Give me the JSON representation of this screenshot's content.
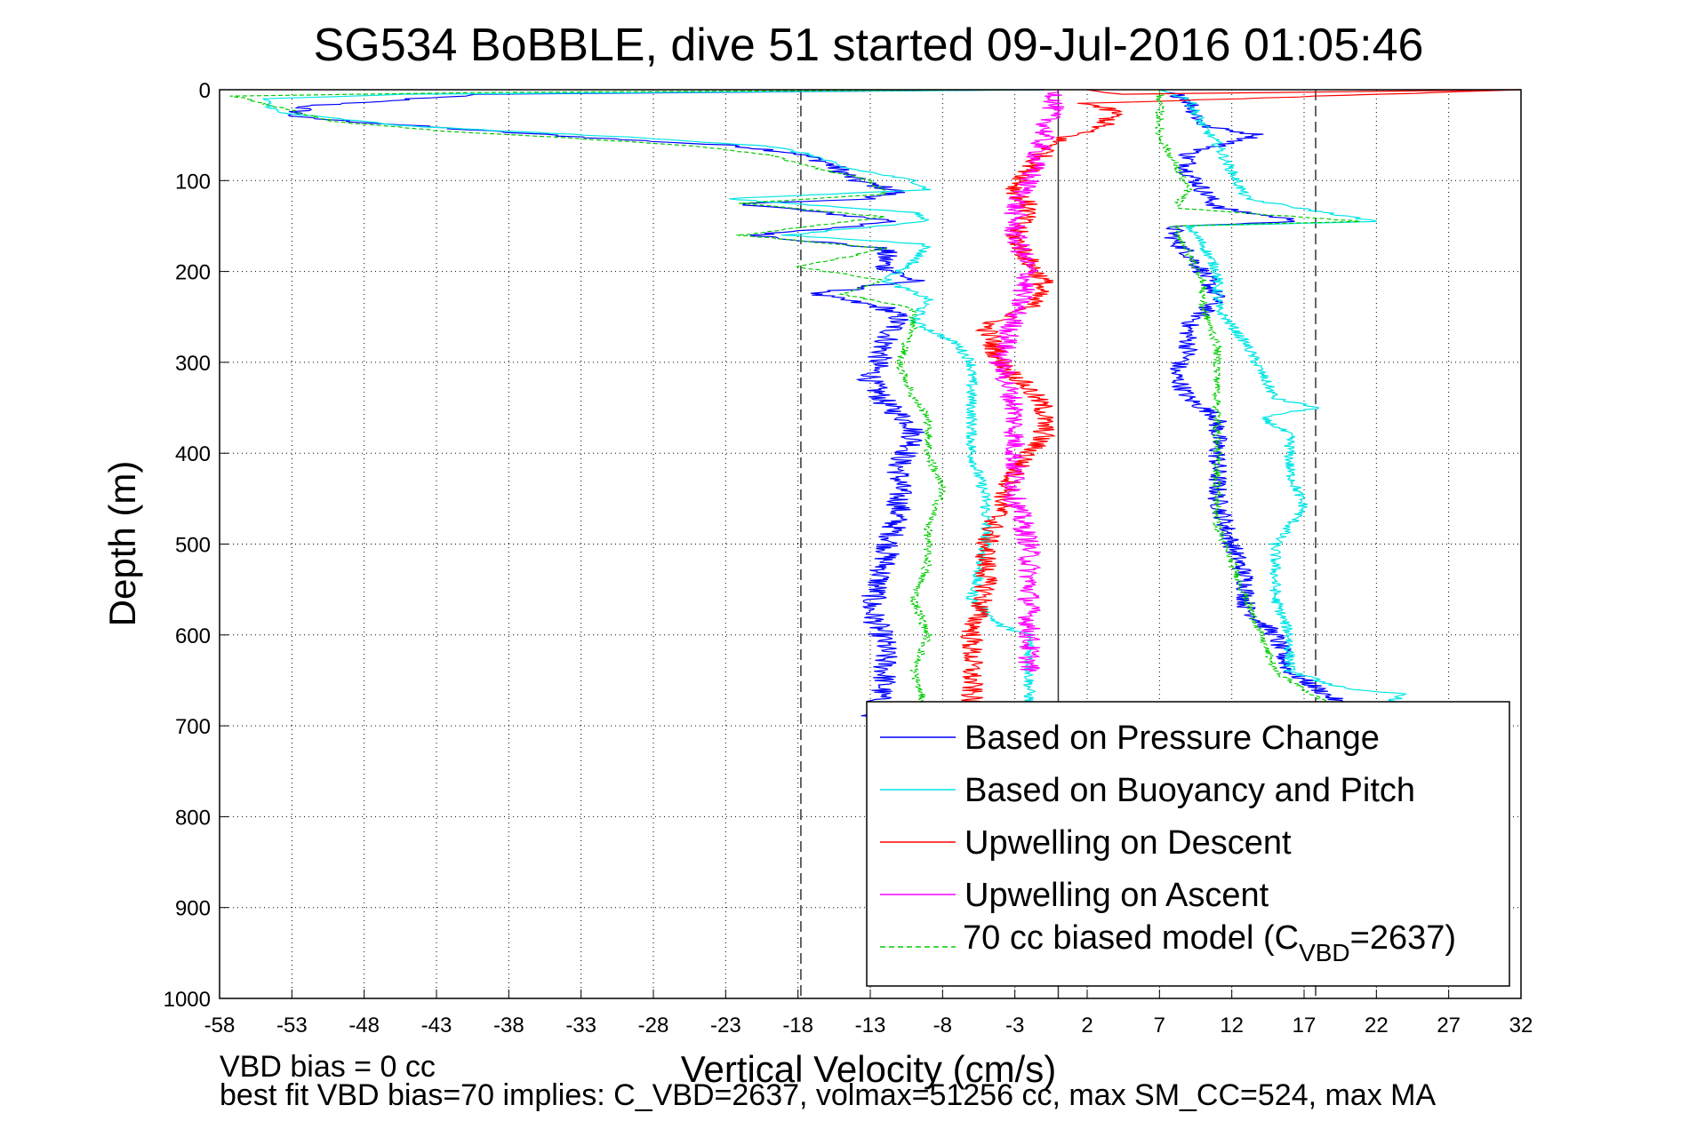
{
  "chart_data": {
    "type": "line",
    "title": "SG534 BoBBLE, dive 51 started 09-Jul-2016 01:05:46",
    "xlabel": "Vertical Velocity (cm/s)",
    "ylabel": "Depth (m)",
    "xlim": [
      -58,
      32
    ],
    "ylim": [
      0,
      1000
    ],
    "y_reversed": true,
    "grid": true,
    "x_ticks": [
      "-58",
      "-53",
      "-48",
      "-43",
      "-38",
      "-33",
      "-28",
      "-23",
      "-18",
      "-13",
      "-8",
      "-3",
      "2",
      "7",
      "12",
      "17",
      "22",
      "27",
      "32"
    ],
    "y_ticks": [
      "0",
      "100",
      "200",
      "300",
      "400",
      "500",
      "600",
      "700",
      "800",
      "900",
      "1000"
    ],
    "reference_lines": [
      {
        "x": -17.8,
        "style": "dashed"
      },
      {
        "x": 0,
        "style": "solid"
      },
      {
        "x": 17.8,
        "style": "dashed"
      }
    ],
    "legend_position": "bottom-right",
    "legend": [
      {
        "label": "Based on Pressure Change",
        "color": "#0000ff",
        "style": "solid"
      },
      {
        "label": "Based on Buoyancy and Pitch",
        "color": "#00e5e5",
        "style": "solid"
      },
      {
        "label": "Upwelling on Descent",
        "color": "#ff0000",
        "style": "solid"
      },
      {
        "label": "Upwelling on Ascent",
        "color": "#ff00ff",
        "style": "solid"
      },
      {
        "label_main": "70 cc biased model (C",
        "label_sub": "VBD",
        "label_tail": "=2637)",
        "color": "#00cc00",
        "style": "dashed"
      }
    ],
    "series": [
      {
        "color": "#0000ff",
        "segment": "descent",
        "noise": 0.9,
        "points": [
          [
            -1,
            0
          ],
          [
            -40,
            5
          ],
          [
            -52,
            18
          ],
          [
            -53,
            30
          ],
          [
            -40,
            45
          ],
          [
            -30,
            55
          ],
          [
            -22,
            62
          ],
          [
            -18,
            70
          ],
          [
            -16,
            80
          ],
          [
            -14,
            100
          ],
          [
            -11,
            112
          ],
          [
            -13,
            120
          ],
          [
            -22,
            125
          ],
          [
            -11,
            145
          ],
          [
            -21,
            160
          ],
          [
            -12,
            175
          ],
          [
            -12,
            195
          ],
          [
            -10,
            210
          ],
          [
            -17,
            225
          ],
          [
            -12,
            240
          ],
          [
            -11,
            250
          ],
          [
            -12,
            280
          ],
          [
            -13,
            320
          ],
          [
            -12,
            345
          ],
          [
            -10,
            370
          ],
          [
            -10,
            390
          ],
          [
            -11,
            410
          ],
          [
            -11,
            460
          ],
          [
            -12,
            520
          ],
          [
            -13,
            570
          ],
          [
            -12,
            610
          ],
          [
            -12,
            650
          ],
          [
            -13,
            700
          ]
        ]
      },
      {
        "color": "#0000ff",
        "segment": "ascent",
        "noise": 0.7,
        "points": [
          [
            7,
            0
          ],
          [
            9,
            10
          ],
          [
            10,
            40
          ],
          [
            14,
            50
          ],
          [
            9,
            70
          ],
          [
            9,
            90
          ],
          [
            10,
            110
          ],
          [
            11,
            130
          ],
          [
            17,
            145
          ],
          [
            8,
            150
          ],
          [
            8,
            165
          ],
          [
            9,
            180
          ],
          [
            10,
            200
          ],
          [
            11,
            230
          ],
          [
            9,
            260
          ],
          [
            9,
            290
          ],
          [
            8,
            310
          ],
          [
            9,
            340
          ],
          [
            11,
            360
          ],
          [
            11,
            400
          ],
          [
            11,
            450
          ],
          [
            12,
            500
          ],
          [
            13,
            540
          ],
          [
            13,
            570
          ],
          [
            15,
            600
          ],
          [
            16,
            640
          ],
          [
            19,
            670
          ],
          [
            20,
            680
          ]
        ]
      },
      {
        "color": "#00e5e5",
        "segment": "descent",
        "noise": 0.4,
        "points": [
          [
            -1,
            0
          ],
          [
            -45,
            5
          ],
          [
            -55,
            10
          ],
          [
            -54,
            25
          ],
          [
            -45,
            40
          ],
          [
            -30,
            52
          ],
          [
            -20,
            62
          ],
          [
            -17,
            72
          ],
          [
            -15,
            85
          ],
          [
            -10,
            100
          ],
          [
            -9,
            110
          ],
          [
            -23,
            120
          ],
          [
            -10,
            135
          ],
          [
            -9,
            145
          ],
          [
            -19,
            160
          ],
          [
            -9,
            170
          ],
          [
            -10,
            190
          ],
          [
            -12,
            210
          ],
          [
            -9,
            230
          ],
          [
            -10,
            255
          ],
          [
            -7,
            280
          ],
          [
            -6,
            300
          ],
          [
            -6,
            340
          ],
          [
            -6,
            400
          ],
          [
            -5,
            450
          ],
          [
            -5,
            500
          ],
          [
            -6,
            560
          ],
          [
            -4,
            590
          ],
          [
            -2,
            600
          ],
          [
            -2,
            640
          ],
          [
            -2,
            700
          ]
        ]
      },
      {
        "color": "#00e5e5",
        "segment": "ascent",
        "noise": 0.4,
        "points": [
          [
            7,
            0
          ],
          [
            9,
            10
          ],
          [
            10,
            40
          ],
          [
            11,
            60
          ],
          [
            12,
            90
          ],
          [
            13,
            120
          ],
          [
            22,
            145
          ],
          [
            9,
            150
          ],
          [
            10,
            170
          ],
          [
            11,
            200
          ],
          [
            11,
            240
          ],
          [
            13,
            280
          ],
          [
            14,
            310
          ],
          [
            15,
            340
          ],
          [
            18,
            350
          ],
          [
            14,
            360
          ],
          [
            16,
            380
          ],
          [
            16,
            420
          ],
          [
            17,
            460
          ],
          [
            15,
            500
          ],
          [
            15,
            560
          ],
          [
            16,
            600
          ],
          [
            16,
            640
          ],
          [
            20,
            660
          ],
          [
            24,
            665
          ],
          [
            21,
            690
          ]
        ]
      },
      {
        "color": "#ff0000",
        "segment": "descent",
        "noise": 0.8,
        "points": [
          [
            2,
            0
          ],
          [
            4,
            5
          ],
          [
            32,
            0
          ],
          [
            2,
            15
          ],
          [
            4,
            25
          ],
          [
            3,
            40
          ],
          [
            0,
            55
          ],
          [
            -1,
            70
          ],
          [
            -2,
            90
          ],
          [
            -3,
            110
          ],
          [
            -2,
            130
          ],
          [
            -3,
            160
          ],
          [
            -2,
            190
          ],
          [
            -1,
            210
          ],
          [
            -2,
            240
          ],
          [
            -5,
            260
          ],
          [
            -4,
            300
          ],
          [
            -2,
            330
          ],
          [
            -1,
            350
          ],
          [
            -1,
            380
          ],
          [
            -3,
            420
          ],
          [
            -4,
            460
          ],
          [
            -5,
            500
          ],
          [
            -5,
            550
          ],
          [
            -6,
            600
          ],
          [
            -6,
            650
          ],
          [
            -6,
            680
          ]
        ]
      },
      {
        "color": "#ff00ff",
        "segment": "ascent",
        "noise": 0.8,
        "points": [
          [
            0,
            0
          ],
          [
            -1,
            50
          ],
          [
            -2,
            100
          ],
          [
            -3,
            130
          ],
          [
            -3,
            160
          ],
          [
            -2,
            200
          ],
          [
            -3,
            250
          ],
          [
            -4,
            300
          ],
          [
            -3,
            350
          ],
          [
            -3,
            400
          ],
          [
            -3,
            450
          ],
          [
            -2,
            500
          ],
          [
            -2,
            550
          ],
          [
            -2,
            600
          ],
          [
            -2,
            640
          ]
        ]
      },
      {
        "color": "#00cc00",
        "segment": "descent",
        "noise": 0.3,
        "dashed": true,
        "points": [
          [
            -2,
            0
          ],
          [
            -40,
            3
          ],
          [
            -57,
            7
          ],
          [
            -55,
            15
          ],
          [
            -50,
            35
          ],
          [
            -43,
            45
          ],
          [
            -35,
            52
          ],
          [
            -25,
            62
          ],
          [
            -20,
            72
          ],
          [
            -17,
            85
          ],
          [
            -13,
            100
          ],
          [
            -12,
            115
          ],
          [
            -22,
            125
          ],
          [
            -12,
            140
          ],
          [
            -22,
            160
          ],
          [
            -12,
            175
          ],
          [
            -18,
            195
          ],
          [
            -12,
            210
          ],
          [
            -15,
            225
          ],
          [
            -10,
            240
          ],
          [
            -10,
            260
          ],
          [
            -11,
            300
          ],
          [
            -10,
            340
          ],
          [
            -9,
            360
          ],
          [
            -9,
            400
          ],
          [
            -8,
            440
          ],
          [
            -9,
            480
          ],
          [
            -9,
            520
          ],
          [
            -10,
            560
          ],
          [
            -9,
            600
          ],
          [
            -10,
            640
          ],
          [
            -9,
            690
          ]
        ]
      },
      {
        "color": "#00cc00",
        "segment": "ascent",
        "noise": 0.3,
        "dashed": true,
        "points": [
          [
            7,
            0
          ],
          [
            7,
            20
          ],
          [
            7,
            50
          ],
          [
            8,
            80
          ],
          [
            9,
            110
          ],
          [
            8,
            130
          ],
          [
            21,
            145
          ],
          [
            8,
            150
          ],
          [
            9,
            180
          ],
          [
            10,
            210
          ],
          [
            10,
            240
          ],
          [
            11,
            280
          ],
          [
            11,
            320
          ],
          [
            11,
            360
          ],
          [
            11,
            400
          ],
          [
            11,
            440
          ],
          [
            11,
            480
          ],
          [
            12,
            520
          ],
          [
            13,
            560
          ],
          [
            14,
            600
          ],
          [
            15,
            640
          ],
          [
            18,
            670
          ],
          [
            20,
            680
          ]
        ]
      }
    ]
  },
  "footer": {
    "line1": "VBD bias = 0 cc",
    "line2": "best fit VBD bias=70 implies: C_VBD=2637, volmax=51256 cc, max SM_CC=524, max MA"
  }
}
